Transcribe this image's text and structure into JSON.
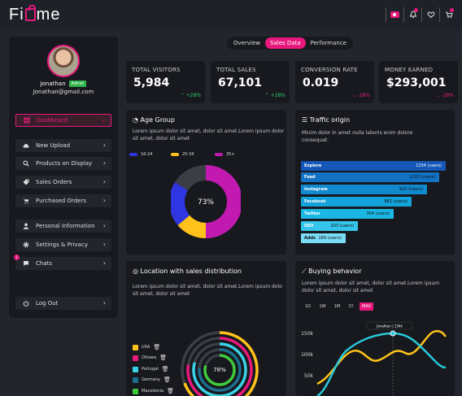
{
  "app": {
    "logo_pre": "Fi",
    "logo_post": "me"
  },
  "user": {
    "name": "Jonathan",
    "role": "Admin",
    "email": "Jonathan@gmail.com"
  },
  "nav": [
    {
      "label": "Dashboard",
      "icon": "dashboard-icon",
      "active": true
    },
    {
      "label": "New Upload",
      "icon": "cloud-upload-icon"
    },
    {
      "label": "Products on Display",
      "icon": "search-icon"
    },
    {
      "label": "Sales Orders",
      "icon": "tag-icon"
    },
    {
      "label": "Purchased Orders",
      "icon": "cart-icon"
    },
    {
      "label": "Personal Information",
      "icon": "user-icon"
    },
    {
      "label": "Settings & Privacy",
      "icon": "gear-icon"
    },
    {
      "label": "Chats",
      "icon": "chat-icon",
      "badge": "1"
    },
    {
      "label": "Log Out",
      "icon": "power-icon"
    }
  ],
  "tabs": [
    "Overview",
    "Sales Data",
    "Performance"
  ],
  "stats": [
    {
      "label": "TOTAL VISITORS",
      "value": "5,984",
      "change": "+28%",
      "up": true
    },
    {
      "label": "TOTAL SALES",
      "value": "67,101",
      "change": "+28%",
      "up": true
    },
    {
      "label": "CONVERSION RATE",
      "value": "0.019",
      "change": "-28%",
      "up": false
    },
    {
      "label": "MONEY EARNED",
      "value": "$293,001",
      "change": "-28%",
      "up": false
    }
  ],
  "age": {
    "title": "Age Group",
    "desc1": "Lorem ipsum dolor sit amet, dolor sit amet.Lorem ipsum dolor",
    "desc2": "sit amet, dolor sit amet",
    "center": "73%",
    "legend": [
      {
        "label": "16-24",
        "color": "#2f35e0"
      },
      {
        "label": "25-34",
        "color": "#ffc21a"
      },
      {
        "label": "35+",
        "color": "#c21ab0"
      }
    ]
  },
  "traffic": {
    "title": "Traffic origin",
    "desc1": "Minim dolor in amet nulla laboris enim dolore",
    "desc2": "consequat.",
    "rows": [
      {
        "label": "Explore",
        "value": "1234 (users)",
        "color": "#1457b8"
      },
      {
        "label": "Feed",
        "value": "1123 (users)",
        "color": "#1272c4"
      },
      {
        "label": "Instagram",
        "value": "920 (Users)",
        "color": "#1189cf"
      },
      {
        "label": "Facebook",
        "value": "881 (users)",
        "color": "#13a2da"
      },
      {
        "label": "Twitter",
        "value": "304 (users)",
        "color": "#1ab7e4"
      },
      {
        "label": "SEO",
        "value": "203 (users)",
        "color": "#34c4ec"
      },
      {
        "label": "Adds",
        "value": "189 (users)",
        "color": "#79dcf5"
      }
    ]
  },
  "location": {
    "title": "Location with sales distribution",
    "desc1": "Lorem ipsum dolor sit amet, dolor sit amet.Lorem ipsum dolo",
    "desc2": "sit amet, dolor sit amet",
    "center": "78%",
    "items": [
      {
        "label": "USA",
        "color": "#ffc21a"
      },
      {
        "label": "Ottawa",
        "color": "#e8187c"
      },
      {
        "label": "Portugal",
        "color": "#3ad0e6"
      },
      {
        "label": "Germany",
        "color": "#1b6f8f"
      },
      {
        "label": "Macedonia",
        "color": "#3ecb3b"
      }
    ]
  },
  "buying": {
    "title": "Buying behavior",
    "desc1": "Lorem ipsum dolor sit amet, dolor sit amet.Lorem ipsum",
    "desc2": "dolor sit amet, dolor sit amet",
    "ranges": [
      "1D",
      "1W",
      "1M",
      "1Y",
      "MAX"
    ],
    "tooltip": "Jonathan | 134k",
    "yticks": [
      "150k",
      "100k",
      "50k"
    ]
  },
  "colors": {
    "accent": "#e8187c",
    "up": "#2ecf6a",
    "down": "#e8187c",
    "bg": "#22252c",
    "card": "#17191e"
  }
}
